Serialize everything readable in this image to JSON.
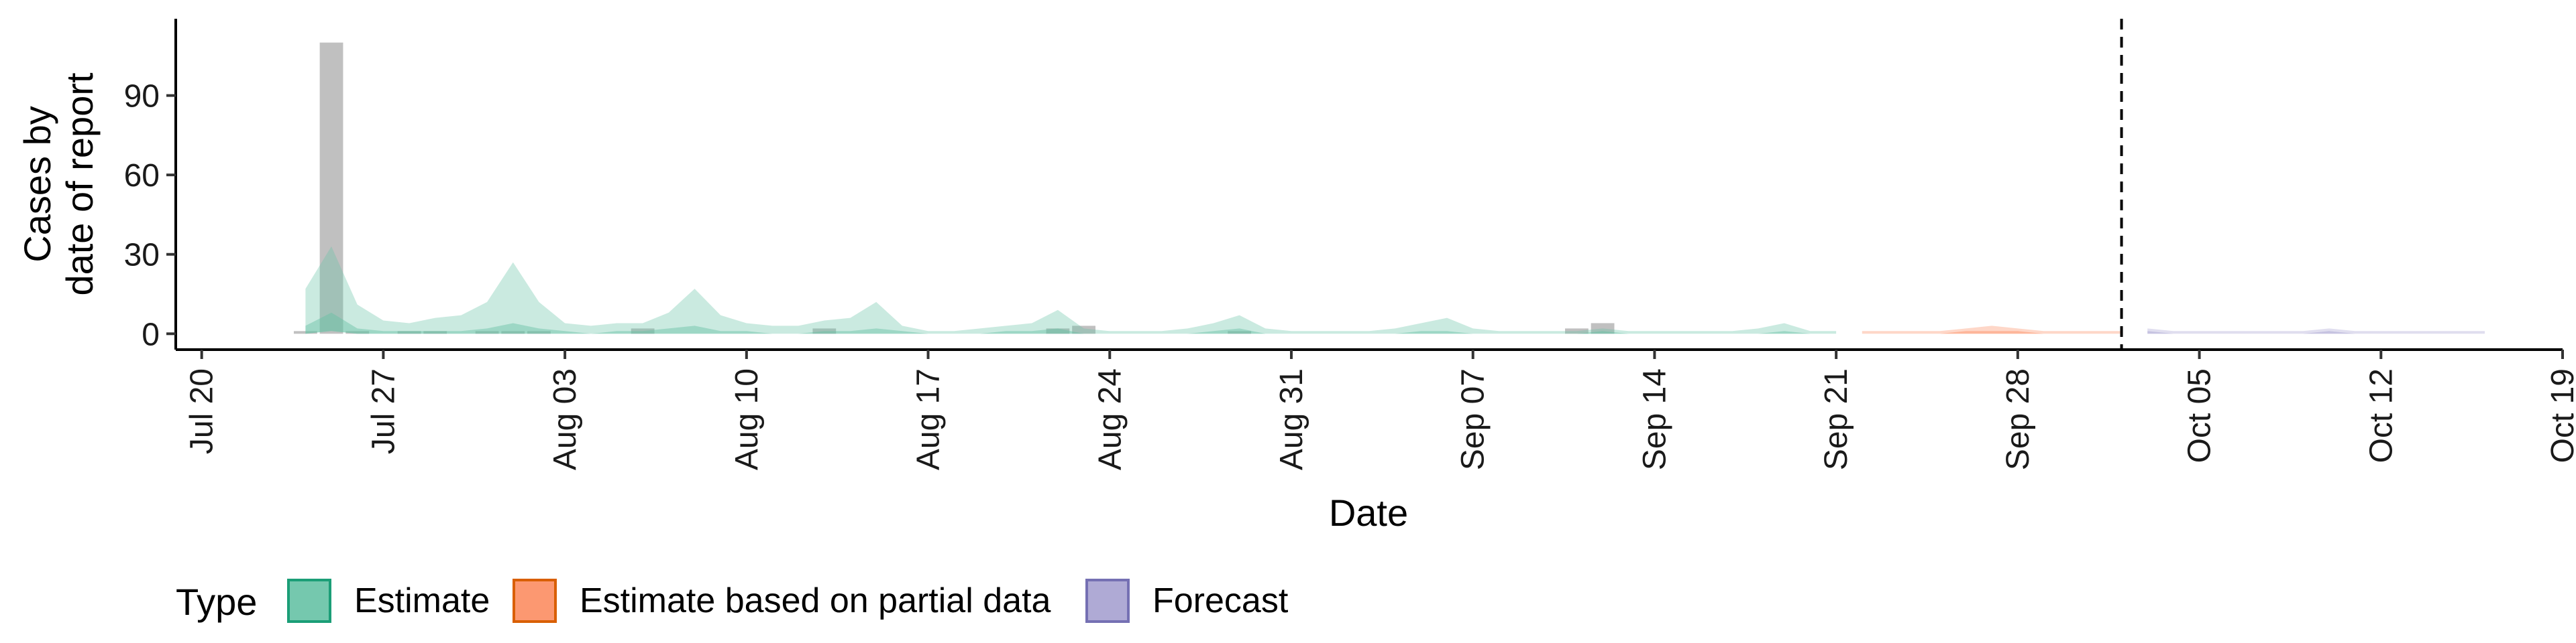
{
  "chart_data": {
    "type": "area",
    "xlabel": "Date",
    "ylabel_lines": [
      "Cases by",
      "date of report"
    ],
    "yticks": [
      0,
      30,
      60,
      90
    ],
    "ylim": [
      -6,
      119
    ],
    "xlim": [
      "2020-07-19",
      "2020-10-19"
    ],
    "xticks": [
      {
        "date": "2020-07-20",
        "label": "Jul 20"
      },
      {
        "date": "2020-07-27",
        "label": "Jul 27"
      },
      {
        "date": "2020-08-03",
        "label": "Aug 03"
      },
      {
        "date": "2020-08-10",
        "label": "Aug 10"
      },
      {
        "date": "2020-08-17",
        "label": "Aug 17"
      },
      {
        "date": "2020-08-24",
        "label": "Aug 24"
      },
      {
        "date": "2020-08-31",
        "label": "Aug 31"
      },
      {
        "date": "2020-09-07",
        "label": "Sep 07"
      },
      {
        "date": "2020-09-14",
        "label": "Sep 14"
      },
      {
        "date": "2020-09-21",
        "label": "Sep 21"
      },
      {
        "date": "2020-09-28",
        "label": "Sep 28"
      },
      {
        "date": "2020-10-05",
        "label": "Oct 05"
      },
      {
        "date": "2020-10-12",
        "label": "Oct 12"
      },
      {
        "date": "2020-10-19",
        "label": "Oct 19"
      }
    ],
    "forecast_line_date": "2020-10-02",
    "grid": false,
    "legend": {
      "title": "Type",
      "position": "bottom",
      "entries": [
        {
          "label": "Estimate",
          "fill": "#66c2a5",
          "stroke": "#1b9e77"
        },
        {
          "label": "Estimate based on partial data",
          "fill": "#fc8d62",
          "stroke": "#d95f02"
        },
        {
          "label": "Forecast",
          "fill": "#a6a1d0",
          "stroke": "#7570b3"
        }
      ]
    },
    "reported_cases": {
      "color": "#9e9e9e",
      "points": [
        {
          "date": "2020-07-24",
          "value": 1
        },
        {
          "date": "2020-07-25",
          "value": 110
        },
        {
          "date": "2020-07-26",
          "value": 1
        },
        {
          "date": "2020-07-28",
          "value": 1
        },
        {
          "date": "2020-07-29",
          "value": 1
        },
        {
          "date": "2020-07-31",
          "value": 1
        },
        {
          "date": "2020-08-01",
          "value": 1
        },
        {
          "date": "2020-08-02",
          "value": 1
        },
        {
          "date": "2020-08-06",
          "value": 2
        },
        {
          "date": "2020-08-13",
          "value": 2
        },
        {
          "date": "2020-08-22",
          "value": 2
        },
        {
          "date": "2020-08-23",
          "value": 3
        },
        {
          "date": "2020-08-29",
          "value": 1
        },
        {
          "date": "2020-09-11",
          "value": 2
        },
        {
          "date": "2020-09-12",
          "value": 4
        }
      ]
    },
    "series": [
      {
        "type": "Estimate",
        "dates": [
          "2020-07-24",
          "2020-07-25",
          "2020-07-26",
          "2020-07-27",
          "2020-07-28",
          "2020-07-29",
          "2020-07-30",
          "2020-07-31",
          "2020-08-01",
          "2020-08-02",
          "2020-08-03",
          "2020-08-04",
          "2020-08-05",
          "2020-08-06",
          "2020-08-07",
          "2020-08-08",
          "2020-08-09",
          "2020-08-10",
          "2020-08-11",
          "2020-08-12",
          "2020-08-13",
          "2020-08-14",
          "2020-08-15",
          "2020-08-16",
          "2020-08-17",
          "2020-08-18",
          "2020-08-19",
          "2020-08-20",
          "2020-08-21",
          "2020-08-22",
          "2020-08-23",
          "2020-08-24",
          "2020-08-25",
          "2020-08-26",
          "2020-08-27",
          "2020-08-28",
          "2020-08-29",
          "2020-08-30",
          "2020-08-31",
          "2020-09-01",
          "2020-09-02",
          "2020-09-03",
          "2020-09-04",
          "2020-09-05",
          "2020-09-06",
          "2020-09-07",
          "2020-09-08",
          "2020-09-09",
          "2020-09-10",
          "2020-09-11",
          "2020-09-12",
          "2020-09-13",
          "2020-09-14",
          "2020-09-15",
          "2020-09-16",
          "2020-09-17",
          "2020-09-18",
          "2020-09-19",
          "2020-09-20",
          "2020-09-21"
        ],
        "upper": [
          17,
          33,
          11,
          5,
          4,
          6,
          7,
          12,
          27,
          12,
          4,
          3,
          4,
          4,
          8,
          17,
          7,
          4,
          3,
          3,
          5,
          6,
          12,
          3,
          1,
          1,
          2,
          3,
          4,
          9,
          2,
          1,
          1,
          1,
          2,
          4,
          7,
          2,
          1,
          1,
          1,
          1,
          2,
          4,
          6,
          2,
          1,
          1,
          1,
          1,
          2,
          1,
          1,
          1,
          1,
          1,
          2,
          4,
          1,
          1
        ],
        "lower": [
          0,
          1,
          0,
          0,
          0,
          0,
          0,
          0,
          0,
          0,
          0,
          0,
          0,
          0,
          0,
          0,
          0,
          0,
          0,
          0,
          0,
          0,
          0,
          0,
          0,
          0,
          0,
          0,
          0,
          0,
          0,
          0,
          0,
          0,
          0,
          0,
          0,
          0,
          0,
          0,
          0,
          0,
          0,
          0,
          0,
          0,
          0,
          0,
          0,
          0,
          0,
          0,
          0,
          0,
          0,
          0,
          0,
          0,
          0,
          0
        ],
        "inner_upper": [
          3,
          8,
          2,
          1,
          1,
          1,
          1,
          2,
          4,
          2,
          1,
          0,
          1,
          1,
          2,
          3,
          1,
          1,
          0,
          0,
          1,
          1,
          2,
          1,
          0,
          0,
          0,
          1,
          1,
          2,
          0,
          0,
          0,
          0,
          0,
          1,
          2,
          0,
          0,
          0,
          0,
          0,
          0,
          1,
          1,
          0,
          0,
          0,
          0,
          0,
          1,
          0,
          0,
          0,
          0,
          0,
          0,
          1,
          0,
          0
        ]
      },
      {
        "type": "Estimate based on partial data",
        "dates": [
          "2020-09-22",
          "2020-09-23",
          "2020-09-24",
          "2020-09-25",
          "2020-09-26",
          "2020-09-27",
          "2020-09-28",
          "2020-09-29",
          "2020-09-30",
          "2020-10-01",
          "2020-10-02"
        ],
        "upper": [
          1,
          1,
          1,
          1,
          2,
          3,
          2,
          1,
          1,
          1,
          1
        ],
        "lower": [
          0,
          0,
          0,
          0,
          0,
          0,
          0,
          0,
          0,
          0,
          0
        ],
        "inner_upper": [
          0,
          0,
          0,
          0,
          1,
          1,
          1,
          0,
          0,
          0,
          0
        ]
      },
      {
        "type": "Forecast",
        "dates": [
          "2020-10-03",
          "2020-10-04",
          "2020-10-05",
          "2020-10-06",
          "2020-10-07",
          "2020-10-08",
          "2020-10-09",
          "2020-10-10",
          "2020-10-11",
          "2020-10-12",
          "2020-10-13",
          "2020-10-14",
          "2020-10-15",
          "2020-10-16"
        ],
        "upper": [
          2,
          1,
          1,
          1,
          1,
          1,
          1,
          2,
          1,
          1,
          1,
          1,
          1,
          1
        ],
        "lower": [
          0,
          0,
          0,
          0,
          0,
          0,
          0,
          0,
          0,
          0,
          0,
          0,
          0,
          0
        ],
        "inner_upper": [
          1,
          0,
          0,
          0,
          0,
          0,
          0,
          1,
          0,
          0,
          0,
          0,
          0,
          0
        ]
      }
    ]
  }
}
